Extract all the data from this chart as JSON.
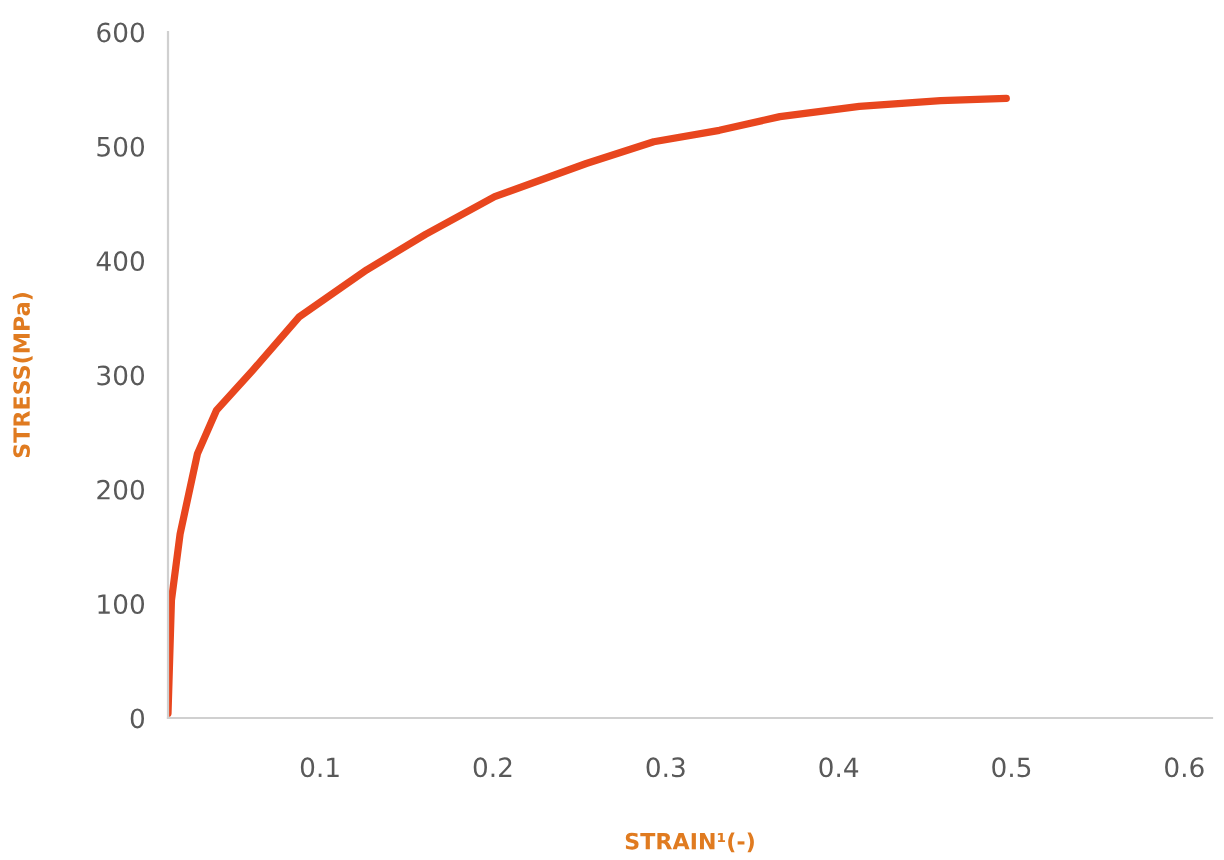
{
  "chart_data": {
    "type": "line",
    "xlabel": "STRAIN¹(-)",
    "ylabel": "STRESS(MPa)",
    "x": [
      0.012,
      0.014,
      0.019,
      0.029,
      0.04,
      0.061,
      0.088,
      0.127,
      0.161,
      0.201,
      0.254,
      0.293,
      0.331,
      0.366,
      0.412,
      0.459,
      0.497
    ],
    "series": [
      {
        "color": "#e8461e",
        "values": [
          4,
          103,
          161,
          231,
          269,
          304,
          351,
          392,
          423,
          456,
          485,
          504,
          514,
          526,
          535,
          540,
          542
        ]
      }
    ],
    "xlim": [
      0.012,
      0.616
    ],
    "ylim": [
      0,
      600
    ],
    "xticks": [
      0.1,
      0.2,
      0.3,
      0.4,
      0.5,
      0.6
    ],
    "yticks": [
      0,
      100,
      200,
      300,
      400,
      500,
      600
    ],
    "grid": false,
    "marker": "none",
    "line_style": "solid"
  }
}
